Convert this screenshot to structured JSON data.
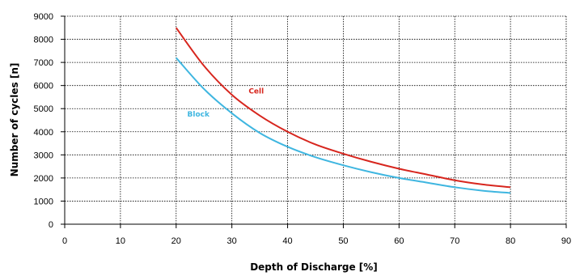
{
  "chart_data": {
    "type": "line",
    "xlabel": "Depth of Discharge [%]",
    "ylabel": "Number of cycles [n]",
    "xlim": [
      0,
      90
    ],
    "ylim": [
      0,
      9000
    ],
    "x_ticks": [
      0,
      10,
      20,
      30,
      40,
      50,
      60,
      70,
      80,
      90
    ],
    "y_ticks": [
      0,
      1000,
      2000,
      3000,
      4000,
      5000,
      6000,
      7000,
      8000,
      9000
    ],
    "grid": true,
    "series": [
      {
        "name": "Cell",
        "color": "#d7261e",
        "x": [
          20,
          25,
          30,
          35,
          40,
          45,
          50,
          55,
          60,
          65,
          70,
          75,
          80
        ],
        "y": [
          8500,
          6850,
          5600,
          4700,
          4000,
          3450,
          3050,
          2700,
          2400,
          2150,
          1900,
          1720,
          1600
        ]
      },
      {
        "name": "Block",
        "color": "#3fb6e0",
        "x": [
          20,
          25,
          30,
          35,
          40,
          45,
          50,
          55,
          60,
          65,
          70,
          75,
          80
        ],
        "y": [
          7200,
          5850,
          4800,
          3950,
          3350,
          2900,
          2550,
          2250,
          2000,
          1800,
          1600,
          1450,
          1350
        ]
      }
    ],
    "annotations": [
      {
        "text": "Cell",
        "x": 33,
        "y": 5650,
        "color": "#d7261e"
      },
      {
        "text": "Block",
        "x": 22,
        "y": 4650,
        "color": "#3fb6e0"
      }
    ]
  }
}
